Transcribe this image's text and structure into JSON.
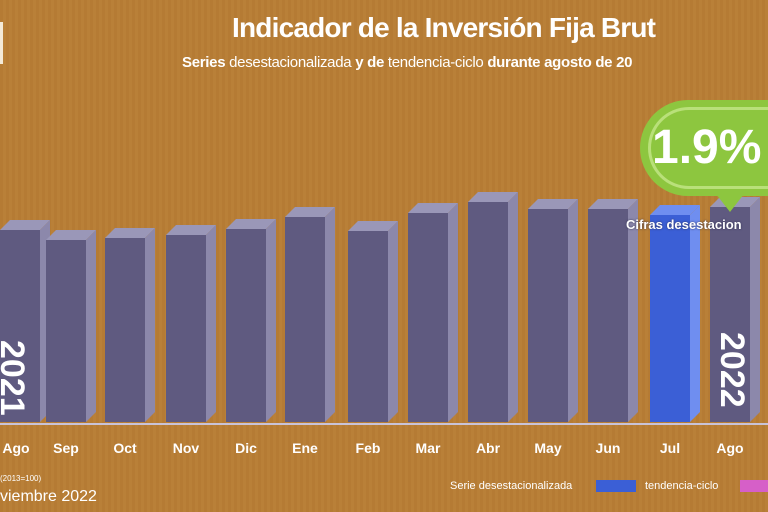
{
  "header": {
    "title": "Indicador de la Inversión Fija Brut",
    "subtitle_parts": [
      "Series",
      " desestacionalizada ",
      "y de",
      " tendencia-ciclo ",
      "durante agosto de 20"
    ]
  },
  "callout": {
    "value": "1.9%",
    "label": "Cifras desestacion"
  },
  "footer": {
    "base": "(2013=100)",
    "date": "viembre 2022"
  },
  "legend": {
    "items": [
      {
        "label": "Serie desestacionalizada",
        "color": "#3b5fd6"
      },
      {
        "label": "tendencia-ciclo",
        "color": "#d65fc8"
      }
    ]
  },
  "chart_data": {
    "type": "bar",
    "title": "Indicador de la Inversión Fija Brut",
    "categories": [
      "Ago",
      "Sep",
      "Oct",
      "Nov",
      "Dic",
      "Ene",
      "Feb",
      "Mar",
      "Abr",
      "May",
      "Jun",
      "Jul",
      "Ago"
    ],
    "year_labels": [
      "2021",
      "2022"
    ],
    "values": [
      192,
      182,
      184,
      187,
      193,
      205,
      191,
      209,
      220,
      213,
      213,
      207,
      215
    ],
    "value_note": "relative bar heights; no y-axis printed",
    "highlight_index": 11,
    "colors": {
      "bar": "#5f5a80",
      "bar_side": "#8c88ab",
      "bar_top": "#9a97b8",
      "highlight": "#3b5fd6",
      "highlight_side": "#6f8ef0",
      "background": "#b67d36",
      "callout": "#8dc63f"
    },
    "grid": false,
    "legend_position": "bottom-right"
  }
}
